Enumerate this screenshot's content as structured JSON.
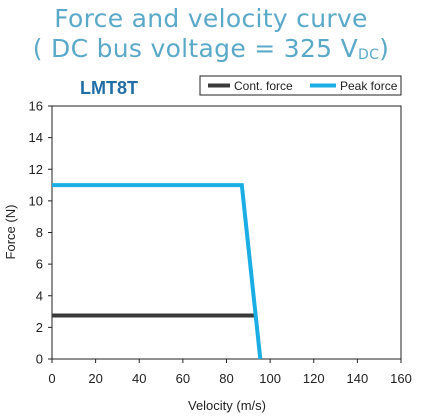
{
  "chart_data": {
    "type": "line",
    "title_line1": "Force and velocity curve",
    "title_line2_prefix": "( DC bus voltage = 325 V",
    "title_line2_sub": "DC",
    "title_line2_suffix": ")",
    "model": "LMT8T",
    "xlabel": "Velocity (m/s)",
    "ylabel": "Force (N)",
    "xlim": [
      0,
      160
    ],
    "ylim": [
      0,
      16
    ],
    "xticks": [
      0,
      20,
      40,
      60,
      80,
      100,
      120,
      140,
      160
    ],
    "yticks": [
      0,
      2,
      4,
      6,
      8,
      10,
      12,
      14,
      16
    ],
    "grid": false,
    "legend_position": "top-right",
    "series": [
      {
        "name": "Cont. force",
        "color": "#3a3a3a",
        "x": [
          0,
          93
        ],
        "y": [
          2.75,
          2.75
        ]
      },
      {
        "name": "Peak force",
        "color": "#1aaee5",
        "x": [
          0,
          87,
          95.5
        ],
        "y": [
          11,
          11,
          0
        ]
      }
    ]
  }
}
